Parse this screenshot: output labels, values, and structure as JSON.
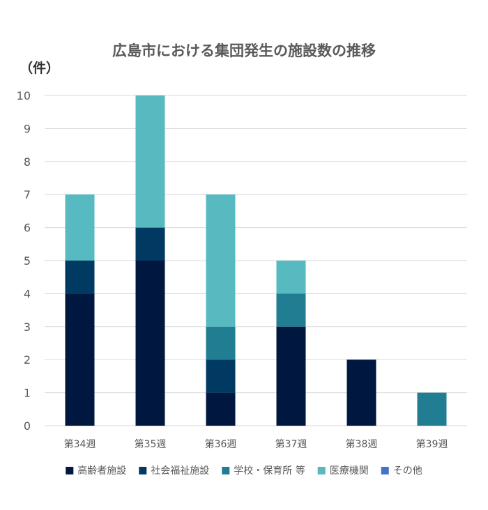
{
  "chart_data": {
    "type": "bar",
    "stacked": true,
    "title": "広島市における集団発生の施設数の推移",
    "unit_label": "（件）",
    "xlabel": "",
    "ylabel": "",
    "ylim": [
      0,
      10
    ],
    "y_ticks": [
      "0",
      "1",
      "2",
      "3",
      "4",
      "5",
      "6",
      "7",
      "8",
      "9",
      "10"
    ],
    "grid": true,
    "legend_position": "bottom",
    "categories": [
      "第34週",
      "第35週",
      "第36週",
      "第37週",
      "第38週",
      "第39週"
    ],
    "series": [
      {
        "name": "高齢者施設",
        "color": "#00183F",
        "values": [
          4,
          5,
          1,
          3,
          2,
          0
        ]
      },
      {
        "name": "社会福祉施設",
        "color": "#003A63",
        "values": [
          1,
          1,
          1,
          0,
          0,
          0
        ]
      },
      {
        "name": "学校・保育所 等",
        "color": "#217D92",
        "values": [
          0,
          0,
          1,
          1,
          0,
          1
        ]
      },
      {
        "name": "医療機関",
        "color": "#56BAC0",
        "values": [
          2,
          4,
          4,
          1,
          0,
          0
        ]
      },
      {
        "name": "その他",
        "color": "#4472C4",
        "values": [
          0,
          0,
          0,
          0,
          0,
          0
        ]
      }
    ]
  }
}
